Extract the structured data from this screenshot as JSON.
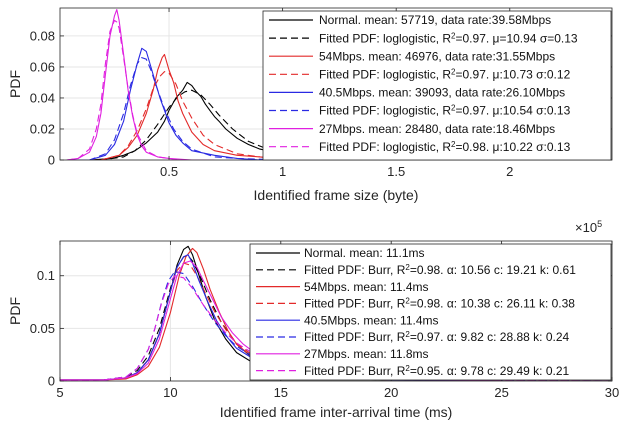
{
  "chart_data": [
    {
      "type": "line",
      "ylabel": "PDF",
      "xlabel": "Identified frame size (byte)",
      "x_multiplier_label": "×10",
      "x_multiplier_exp": "5",
      "xlim": [
        0.02,
        2.45
      ],
      "ylim": [
        0,
        0.098
      ],
      "xticks": [
        0.5,
        1,
        1.5,
        2
      ],
      "xtick_labels": [
        "0.5",
        "1",
        "1.5",
        "2"
      ],
      "yticks": [
        0,
        0.02,
        0.04,
        0.06,
        0.08
      ],
      "ytick_labels": [
        "0",
        "0.02",
        "0.04",
        "0.06",
        "0.08"
      ],
      "legend_position": "top-right",
      "series": [
        {
          "name": "Normal. mean: 57719, data rate:39.58Mbps",
          "color": "#000000",
          "dash": false,
          "x": [
            0.05,
            0.15,
            0.25,
            0.3,
            0.35,
            0.4,
            0.45,
            0.48,
            0.5,
            0.53,
            0.56,
            0.58,
            0.6,
            0.62,
            0.64,
            0.66,
            0.68,
            0.7,
            0.72,
            0.75,
            0.8,
            0.85,
            0.9,
            1.0,
            1.1,
            1.2,
            1.4,
            1.6,
            1.8
          ],
          "y": [
            0,
            0,
            0.001,
            0.003,
            0.006,
            0.011,
            0.018,
            0.025,
            0.032,
            0.04,
            0.045,
            0.05,
            0.048,
            0.044,
            0.041,
            0.036,
            0.032,
            0.028,
            0.025,
            0.02,
            0.014,
            0.01,
            0.007,
            0.004,
            0.003,
            0.002,
            0.001,
            0.001,
            0
          ]
        },
        {
          "name": "Fitted PDF: loglogistic, R²=0.97. μ=10.94 σ=0.13",
          "color": "#000000",
          "dash": true,
          "x": [
            0.05,
            0.2,
            0.3,
            0.35,
            0.4,
            0.45,
            0.5,
            0.54,
            0.57,
            0.6,
            0.64,
            0.68,
            0.72,
            0.78,
            0.85,
            0.95,
            1.1,
            1.3,
            1.6,
            2.0
          ],
          "y": [
            0,
            0,
            0.002,
            0.006,
            0.013,
            0.023,
            0.034,
            0.041,
            0.044,
            0.045,
            0.042,
            0.036,
            0.029,
            0.02,
            0.012,
            0.006,
            0.002,
            0.001,
            0,
            0
          ]
        },
        {
          "name": "54Mbps. mean: 46976, data rate:31.55Mbps",
          "color": "#e32a2a",
          "dash": false,
          "x": [
            0.05,
            0.2,
            0.28,
            0.32,
            0.36,
            0.4,
            0.43,
            0.45,
            0.47,
            0.48,
            0.5,
            0.52,
            0.54,
            0.56,
            0.58,
            0.6,
            0.65,
            0.7,
            0.8,
            0.9,
            1.0,
            1.2,
            1.5
          ],
          "y": [
            0,
            0,
            0.003,
            0.008,
            0.016,
            0.03,
            0.045,
            0.058,
            0.066,
            0.068,
            0.058,
            0.05,
            0.038,
            0.03,
            0.024,
            0.018,
            0.01,
            0.006,
            0.003,
            0.002,
            0.001,
            0,
            0
          ]
        },
        {
          "name": "Fitted PDF: loglogistic, R²=0.97. μ:10.73 σ:0.12",
          "color": "#e32a2a",
          "dash": true,
          "x": [
            0.05,
            0.2,
            0.28,
            0.32,
            0.36,
            0.4,
            0.43,
            0.46,
            0.48,
            0.5,
            0.53,
            0.56,
            0.6,
            0.65,
            0.7,
            0.8,
            0.9,
            1.1,
            1.4
          ],
          "y": [
            0,
            0,
            0.003,
            0.009,
            0.019,
            0.033,
            0.046,
            0.054,
            0.057,
            0.056,
            0.049,
            0.038,
            0.027,
            0.016,
            0.01,
            0.004,
            0.002,
            0,
            0
          ]
        },
        {
          "name": "40.5Mbps. mean: 39093, data rate:26.10Mbps",
          "color": "#2a2ae3",
          "dash": false,
          "x": [
            0.05,
            0.15,
            0.22,
            0.26,
            0.3,
            0.33,
            0.36,
            0.38,
            0.4,
            0.42,
            0.44,
            0.46,
            0.48,
            0.5,
            0.53,
            0.56,
            0.6,
            0.7,
            0.8,
            0.9,
            1.1
          ],
          "y": [
            0,
            0,
            0.003,
            0.01,
            0.025,
            0.045,
            0.062,
            0.072,
            0.07,
            0.06,
            0.05,
            0.04,
            0.032,
            0.024,
            0.016,
            0.011,
            0.006,
            0.003,
            0.001,
            0,
            0
          ]
        },
        {
          "name": "Fitted PDF: loglogistic, R²=0.97. μ:10.54 σ:0.13",
          "color": "#2a2ae3",
          "dash": true,
          "x": [
            0.05,
            0.15,
            0.22,
            0.26,
            0.3,
            0.33,
            0.36,
            0.38,
            0.4,
            0.42,
            0.45,
            0.48,
            0.52,
            0.56,
            0.6,
            0.7,
            0.8,
            1.0
          ],
          "y": [
            0,
            0,
            0.004,
            0.013,
            0.03,
            0.048,
            0.062,
            0.066,
            0.065,
            0.058,
            0.045,
            0.033,
            0.02,
            0.012,
            0.007,
            0.002,
            0.001,
            0
          ]
        },
        {
          "name": "27Mbps. mean: 28480, data rate:18.46Mbps",
          "color": "#e020e0",
          "dash": false,
          "x": [
            0.05,
            0.1,
            0.15,
            0.18,
            0.2,
            0.22,
            0.24,
            0.26,
            0.27,
            0.28,
            0.3,
            0.32,
            0.34,
            0.36,
            0.38,
            0.4,
            0.45,
            0.5,
            0.6,
            0.7
          ],
          "y": [
            0,
            0.001,
            0.005,
            0.015,
            0.03,
            0.055,
            0.08,
            0.093,
            0.097,
            0.09,
            0.068,
            0.045,
            0.028,
            0.016,
            0.009,
            0.005,
            0.002,
            0.001,
            0,
            0
          ]
        },
        {
          "name": "Fitted PDF: loglogistic, R²=0.98. μ:10.22 σ:0.13",
          "color": "#e020e0",
          "dash": true,
          "x": [
            0.05,
            0.1,
            0.15,
            0.18,
            0.2,
            0.22,
            0.24,
            0.26,
            0.27,
            0.28,
            0.3,
            0.32,
            0.34,
            0.36,
            0.4,
            0.45,
            0.55,
            0.7
          ],
          "y": [
            0,
            0.001,
            0.007,
            0.02,
            0.036,
            0.062,
            0.083,
            0.09,
            0.089,
            0.085,
            0.066,
            0.046,
            0.029,
            0.017,
            0.006,
            0.002,
            0,
            0
          ]
        }
      ]
    },
    {
      "type": "line",
      "ylabel": "PDF",
      "xlabel": "Identified frame inter-arrival time (ms)",
      "xlim": [
        5,
        30
      ],
      "ylim": [
        0,
        0.133
      ],
      "xticks": [
        5,
        10,
        15,
        20,
        25,
        30
      ],
      "xtick_labels": [
        "5",
        "10",
        "15",
        "20",
        "25",
        "30"
      ],
      "yticks": [
        0,
        0.05,
        0.1
      ],
      "ytick_labels": [
        "0",
        "0.05",
        "0.1"
      ],
      "legend_position": "top-right",
      "series": [
        {
          "name": "Normal.  mean: 11.1ms",
          "color": "#000000",
          "dash": false,
          "x": [
            5,
            7,
            8,
            8.5,
            9,
            9.5,
            10,
            10.3,
            10.6,
            10.8,
            11,
            11.3,
            11.6,
            12,
            12.5,
            13,
            14,
            15,
            16,
            17,
            18,
            20,
            22,
            25,
            30
          ],
          "y": [
            0.001,
            0.001,
            0.003,
            0.008,
            0.02,
            0.045,
            0.085,
            0.11,
            0.125,
            0.128,
            0.12,
            0.1,
            0.08,
            0.058,
            0.04,
            0.027,
            0.014,
            0.008,
            0.005,
            0.003,
            0.002,
            0.001,
            0.001,
            0,
            0
          ]
        },
        {
          "name": "Fitted PDF: Burr, R²=0.98. α: 10.56 c: 19.21 k: 0.61",
          "color": "#000000",
          "dash": true,
          "x": [
            5,
            7,
            8,
            8.5,
            9,
            9.5,
            10,
            10.3,
            10.6,
            10.8,
            11,
            11.4,
            11.8,
            12.3,
            13,
            14,
            15,
            16,
            18,
            20,
            25,
            30
          ],
          "y": [
            0,
            0.001,
            0.004,
            0.01,
            0.024,
            0.05,
            0.088,
            0.108,
            0.118,
            0.119,
            0.114,
            0.097,
            0.077,
            0.056,
            0.035,
            0.017,
            0.009,
            0.005,
            0.002,
            0.001,
            0,
            0
          ]
        },
        {
          "name": "54Mbps.  mean: 11.4ms",
          "color": "#e32a2a",
          "dash": false,
          "x": [
            5,
            7,
            8,
            8.5,
            9,
            9.5,
            10,
            10.4,
            10.7,
            11,
            11.2,
            11.5,
            11.8,
            12.2,
            12.6,
            13,
            14,
            15,
            16,
            18,
            20,
            25,
            30
          ],
          "y": [
            0.001,
            0.001,
            0.002,
            0.006,
            0.014,
            0.032,
            0.065,
            0.1,
            0.118,
            0.126,
            0.122,
            0.106,
            0.087,
            0.066,
            0.048,
            0.035,
            0.018,
            0.01,
            0.006,
            0.003,
            0.001,
            0,
            0
          ]
        },
        {
          "name": "Fitted PDF: Burr, R²=0.98. α: 10.38 c: 26.11 k: 0.38",
          "color": "#e32a2a",
          "dash": true,
          "x": [
            5,
            7,
            8,
            8.5,
            9,
            9.5,
            10,
            10.3,
            10.6,
            10.9,
            11.2,
            11.6,
            12,
            12.5,
            13,
            14,
            15,
            16,
            18,
            20,
            25,
            30
          ],
          "y": [
            0,
            0.001,
            0.003,
            0.008,
            0.02,
            0.045,
            0.085,
            0.105,
            0.112,
            0.11,
            0.1,
            0.083,
            0.066,
            0.049,
            0.036,
            0.02,
            0.012,
            0.007,
            0.003,
            0.001,
            0,
            0
          ]
        },
        {
          "name": "40.5Mbps.  mean: 11.4ms",
          "color": "#2a2ae3",
          "dash": false,
          "x": [
            5,
            7,
            8,
            8.5,
            9,
            9.5,
            10,
            10.3,
            10.6,
            10.8,
            11,
            11.3,
            11.7,
            12.1,
            12.6,
            13,
            14,
            15,
            16,
            18,
            20,
            25,
            30
          ],
          "y": [
            0.001,
            0.001,
            0.003,
            0.008,
            0.02,
            0.045,
            0.085,
            0.108,
            0.118,
            0.12,
            0.112,
            0.095,
            0.075,
            0.057,
            0.041,
            0.031,
            0.018,
            0.011,
            0.007,
            0.003,
            0.001,
            0,
            0
          ]
        },
        {
          "name": "Fitted PDF: Burr, R²=0.97. α: 9.82 c: 28.88 k: 0.24",
          "color": "#2a2ae3",
          "dash": true,
          "x": [
            5,
            7,
            8,
            8.5,
            9,
            9.3,
            9.6,
            9.9,
            10.2,
            10.6,
            11,
            11.5,
            12,
            12.5,
            13,
            14,
            15,
            16,
            18,
            20,
            25,
            30
          ],
          "y": [
            0,
            0.001,
            0.004,
            0.012,
            0.03,
            0.05,
            0.075,
            0.095,
            0.104,
            0.102,
            0.09,
            0.072,
            0.056,
            0.043,
            0.033,
            0.02,
            0.013,
            0.008,
            0.004,
            0.002,
            0.001,
            0
          ]
        },
        {
          "name": "27Mbps.  mean: 11.8ms",
          "color": "#e020e0",
          "dash": false,
          "x": [
            5,
            7,
            8,
            8.5,
            9,
            9.5,
            10,
            10.3,
            10.6,
            10.9,
            11.2,
            11.5,
            11.9,
            12.3,
            12.8,
            13.3,
            14,
            15,
            16,
            18,
            20,
            25,
            30
          ],
          "y": [
            0.001,
            0.001,
            0.003,
            0.007,
            0.017,
            0.04,
            0.078,
            0.1,
            0.112,
            0.114,
            0.108,
            0.095,
            0.078,
            0.061,
            0.046,
            0.035,
            0.024,
            0.014,
            0.009,
            0.004,
            0.002,
            0,
            0
          ]
        },
        {
          "name": "Fitted PDF: Burr, R²=0.95. α: 9.78 c: 29.49 k: 0.21",
          "color": "#e020e0",
          "dash": true,
          "x": [
            5,
            7,
            8,
            8.5,
            9,
            9.3,
            9.6,
            9.9,
            10.2,
            10.6,
            11,
            11.5,
            12,
            12.5,
            13,
            14,
            15,
            16,
            18,
            20,
            25,
            30
          ],
          "y": [
            0,
            0.001,
            0.004,
            0.012,
            0.03,
            0.05,
            0.074,
            0.092,
            0.1,
            0.098,
            0.088,
            0.072,
            0.058,
            0.046,
            0.036,
            0.023,
            0.015,
            0.01,
            0.005,
            0.002,
            0.001,
            0
          ]
        }
      ]
    }
  ]
}
